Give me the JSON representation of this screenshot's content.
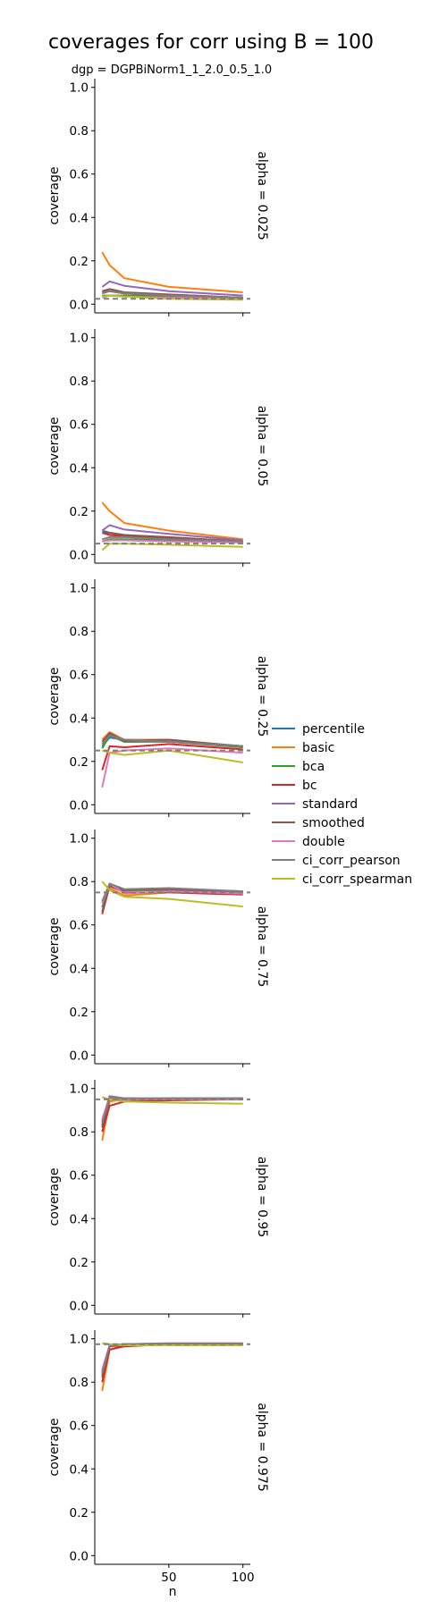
{
  "chart_data": {
    "type": "line",
    "title": "coverages for corr using B = 100",
    "subtitle": "dgp = DGPBiNorm1_1_2.0_0.5_1.0",
    "xlabel": "n",
    "ylabel": "coverage",
    "xlim": [
      0,
      105
    ],
    "ylim": [
      -0.04,
      1.04
    ],
    "x_ticks": [
      50,
      100
    ],
    "y_ticks": [
      0.0,
      0.2,
      0.4,
      0.6,
      0.8,
      1.0
    ],
    "y_tick_labels": [
      "0.0",
      "0.2",
      "0.4",
      "0.6",
      "0.8",
      "1.0"
    ],
    "x": [
      5,
      10,
      20,
      50,
      100
    ],
    "grid": false,
    "legend_position": "right",
    "series_names": [
      "percentile",
      "basic",
      "bca",
      "bc",
      "standard",
      "smoothed",
      "double",
      "ci_corr_pearson",
      "ci_corr_spearman"
    ],
    "colors": [
      "#1f77b4",
      "#ff7f0e",
      "#2ca02c",
      "#d62728",
      "#9467bd",
      "#8c564b",
      "#e377c2",
      "#7f7f7f",
      "#bcbd22"
    ],
    "panels": [
      {
        "label": "alpha = 0.025",
        "alpha": 0.025,
        "series": [
          {
            "name": "percentile",
            "values": [
              0.06,
              0.06,
              0.05,
              0.04,
              0.03
            ]
          },
          {
            "name": "basic",
            "values": [
              0.24,
              0.18,
              0.12,
              0.08,
              0.055
            ]
          },
          {
            "name": "bca",
            "values": [
              0.04,
              0.04,
              0.04,
              0.035,
              0.03
            ]
          },
          {
            "name": "bc",
            "values": [
              0.05,
              0.06,
              0.05,
              0.04,
              0.03
            ]
          },
          {
            "name": "standard",
            "values": [
              0.08,
              0.105,
              0.085,
              0.06,
              0.04
            ]
          },
          {
            "name": "smoothed",
            "values": [
              0.06,
              0.07,
              0.055,
              0.045,
              0.03
            ]
          },
          {
            "name": "double",
            "values": [
              0.03,
              0.04,
              0.035,
              0.03,
              0.025
            ]
          },
          {
            "name": "ci_corr_pearson",
            "values": [
              0.05,
              0.06,
              0.05,
              0.04,
              0.03
            ]
          },
          {
            "name": "ci_corr_spearman",
            "values": [
              0.035,
              0.04,
              0.035,
              0.025,
              0.02
            ]
          }
        ]
      },
      {
        "label": "alpha = 0.05",
        "alpha": 0.05,
        "series": [
          {
            "name": "percentile",
            "values": [
              0.11,
              0.1,
              0.09,
              0.075,
              0.06
            ]
          },
          {
            "name": "basic",
            "values": [
              0.24,
              0.2,
              0.145,
              0.11,
              0.07
            ]
          },
          {
            "name": "bca",
            "values": [
              0.06,
              0.07,
              0.07,
              0.065,
              0.06
            ]
          },
          {
            "name": "bc",
            "values": [
              0.1,
              0.09,
              0.085,
              0.075,
              0.06
            ]
          },
          {
            "name": "standard",
            "values": [
              0.11,
              0.135,
              0.115,
              0.095,
              0.065
            ]
          },
          {
            "name": "smoothed",
            "values": [
              0.1,
              0.1,
              0.09,
              0.08,
              0.06
            ]
          },
          {
            "name": "double",
            "values": [
              0.06,
              0.065,
              0.065,
              0.06,
              0.055
            ]
          },
          {
            "name": "ci_corr_pearson",
            "values": [
              0.07,
              0.08,
              0.08,
              0.07,
              0.06
            ]
          },
          {
            "name": "ci_corr_spearman",
            "values": [
              0.02,
              0.05,
              0.05,
              0.045,
              0.035
            ]
          }
        ]
      },
      {
        "label": "alpha = 0.25",
        "alpha": 0.25,
        "series": [
          {
            "name": "percentile",
            "values": [
              0.27,
              0.31,
              0.3,
              0.29,
              0.27
            ]
          },
          {
            "name": "basic",
            "values": [
              0.3,
              0.335,
              0.3,
              0.3,
              0.265
            ]
          },
          {
            "name": "bca",
            "values": [
              0.26,
              0.32,
              0.29,
              0.29,
              0.265
            ]
          },
          {
            "name": "bc",
            "values": [
              0.16,
              0.27,
              0.265,
              0.28,
              0.255
            ]
          },
          {
            "name": "standard",
            "values": [
              0.28,
              0.32,
              0.295,
              0.29,
              0.27
            ]
          },
          {
            "name": "smoothed",
            "values": [
              0.29,
              0.33,
              0.295,
              0.3,
              0.27
            ]
          },
          {
            "name": "double",
            "values": [
              0.08,
              0.24,
              0.25,
              0.26,
              0.24
            ]
          },
          {
            "name": "ci_corr_pearson",
            "values": [
              0.28,
              0.32,
              0.3,
              0.29,
              0.27
            ]
          },
          {
            "name": "ci_corr_spearman",
            "values": [
              0.25,
              0.24,
              0.23,
              0.25,
              0.195
            ]
          }
        ]
      },
      {
        "label": "alpha = 0.75",
        "alpha": 0.75,
        "series": [
          {
            "name": "percentile",
            "values": [
              0.7,
              0.79,
              0.76,
              0.765,
              0.755
            ]
          },
          {
            "name": "basic",
            "values": [
              0.7,
              0.77,
              0.735,
              0.75,
              0.745
            ]
          },
          {
            "name": "bca",
            "values": [
              0.68,
              0.79,
              0.76,
              0.76,
              0.75
            ]
          },
          {
            "name": "bc",
            "values": [
              0.65,
              0.78,
              0.75,
              0.75,
              0.74
            ]
          },
          {
            "name": "standard",
            "values": [
              0.7,
              0.785,
              0.76,
              0.765,
              0.75
            ]
          },
          {
            "name": "smoothed",
            "values": [
              0.66,
              0.78,
              0.76,
              0.765,
              0.755
            ]
          },
          {
            "name": "double",
            "values": [
              0.7,
              0.79,
              0.745,
              0.755,
              0.745
            ]
          },
          {
            "name": "ci_corr_pearson",
            "values": [
              0.71,
              0.79,
              0.765,
              0.77,
              0.755
            ]
          },
          {
            "name": "ci_corr_spearman",
            "values": [
              0.8,
              0.76,
              0.73,
              0.72,
              0.685
            ]
          }
        ]
      },
      {
        "label": "alpha = 0.95",
        "alpha": 0.95,
        "series": [
          {
            "name": "percentile",
            "values": [
              0.82,
              0.955,
              0.955,
              0.95,
              0.955
            ]
          },
          {
            "name": "basic",
            "values": [
              0.76,
              0.94,
              0.95,
              0.95,
              0.95
            ]
          },
          {
            "name": "bca",
            "values": [
              0.84,
              0.96,
              0.95,
              0.955,
              0.955
            ]
          },
          {
            "name": "bc",
            "values": [
              0.8,
              0.92,
              0.94,
              0.945,
              0.95
            ]
          },
          {
            "name": "standard",
            "values": [
              0.85,
              0.965,
              0.955,
              0.95,
              0.955
            ]
          },
          {
            "name": "smoothed",
            "values": [
              0.83,
              0.955,
              0.95,
              0.95,
              0.95
            ]
          },
          {
            "name": "double",
            "values": [
              0.86,
              0.96,
              0.95,
              0.95,
              0.95
            ]
          },
          {
            "name": "ci_corr_pearson",
            "values": [
              0.84,
              0.96,
              0.955,
              0.955,
              0.955
            ]
          },
          {
            "name": "ci_corr_spearman",
            "values": [
              0.96,
              0.95,
              0.94,
              0.935,
              0.93
            ]
          }
        ]
      },
      {
        "label": "alpha = 0.975",
        "alpha": 0.975,
        "series": [
          {
            "name": "percentile",
            "values": [
              0.82,
              0.965,
              0.975,
              0.975,
              0.978
            ]
          },
          {
            "name": "basic",
            "values": [
              0.76,
              0.95,
              0.97,
              0.975,
              0.975
            ]
          },
          {
            "name": "bca",
            "values": [
              0.84,
              0.97,
              0.975,
              0.978,
              0.978
            ]
          },
          {
            "name": "bc",
            "values": [
              0.8,
              0.95,
              0.965,
              0.975,
              0.975
            ]
          },
          {
            "name": "standard",
            "values": [
              0.85,
              0.97,
              0.975,
              0.978,
              0.978
            ]
          },
          {
            "name": "smoothed",
            "values": [
              0.83,
              0.965,
              0.97,
              0.975,
              0.975
            ]
          },
          {
            "name": "double",
            "values": [
              0.86,
              0.97,
              0.975,
              0.98,
              0.98
            ]
          },
          {
            "name": "ci_corr_pearson",
            "values": [
              0.84,
              0.97,
              0.975,
              0.978,
              0.978
            ]
          },
          {
            "name": "ci_corr_spearman",
            "values": [
              0.98,
              0.975,
              0.97,
              0.97,
              0.97
            ]
          }
        ]
      }
    ]
  }
}
